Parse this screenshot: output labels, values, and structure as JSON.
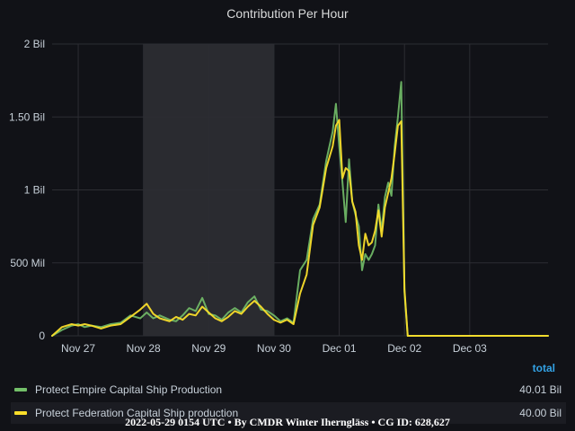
{
  "chart_data": {
    "type": "line",
    "title": "Contribution Per Hour",
    "x_tick_labels": [
      "Nov 27",
      "Nov 28",
      "Nov 29",
      "Nov 30",
      "Dec 01",
      "Dec 02",
      "Dec 03"
    ],
    "x_range": [
      26.6,
      34.2
    ],
    "y_tick_labels": [
      "0",
      "500 Mil",
      "1 Bil",
      "1.50 Bil",
      "2 Bil"
    ],
    "y_ticks": [
      0,
      500000000,
      1000000000,
      1500000000,
      2000000000
    ],
    "ylim": [
      0,
      2000000000
    ],
    "shaded_region": [
      28.0,
      30.0
    ],
    "grid": true,
    "legend_position": "bottom",
    "legend_column_header": "total",
    "series": [
      {
        "name": "Protect Empire Capital Ship Production",
        "color": "#73bf69",
        "total": "40.01 Bil",
        "x": [
          26.6,
          26.75,
          26.9,
          27.0,
          27.1,
          27.2,
          27.35,
          27.5,
          27.65,
          27.8,
          27.95,
          28.05,
          28.15,
          28.25,
          28.4,
          28.5,
          28.6,
          28.7,
          28.8,
          28.9,
          29.0,
          29.1,
          29.2,
          29.3,
          29.4,
          29.5,
          29.6,
          29.7,
          29.8,
          29.9,
          30.0,
          30.1,
          30.2,
          30.3,
          30.4,
          30.5,
          30.6,
          30.7,
          30.8,
          30.9,
          30.95,
          31.0,
          31.05,
          31.1,
          31.15,
          31.2,
          31.25,
          31.3,
          31.35,
          31.4,
          31.45,
          31.5,
          31.55,
          31.6,
          31.65,
          31.7,
          31.75,
          31.8,
          31.85,
          31.9,
          31.95,
          32.0,
          32.05,
          32.1,
          32.2,
          32.5,
          33.0,
          33.5,
          34.0,
          34.2
        ],
        "y": [
          0,
          40000000,
          70000000,
          80000000,
          60000000,
          70000000,
          60000000,
          80000000,
          90000000,
          140000000,
          120000000,
          160000000,
          120000000,
          140000000,
          110000000,
          100000000,
          140000000,
          190000000,
          170000000,
          260000000,
          150000000,
          140000000,
          110000000,
          160000000,
          190000000,
          160000000,
          230000000,
          270000000,
          180000000,
          170000000,
          140000000,
          100000000,
          120000000,
          90000000,
          450000000,
          520000000,
          800000000,
          900000000,
          1200000000,
          1400000000,
          1590000000,
          1300000000,
          1050000000,
          780000000,
          1210000000,
          920000000,
          830000000,
          750000000,
          450000000,
          560000000,
          520000000,
          560000000,
          620000000,
          900000000,
          720000000,
          950000000,
          1050000000,
          960000000,
          1300000000,
          1500000000,
          1740000000,
          300000000,
          0,
          0,
          0,
          0,
          0,
          0,
          0,
          0
        ]
      },
      {
        "name": "Protect Federation Capital Ship production",
        "color": "#fade2a",
        "total": "40.00 Bil",
        "x": [
          26.6,
          26.75,
          26.9,
          27.0,
          27.1,
          27.2,
          27.35,
          27.5,
          27.65,
          27.8,
          27.95,
          28.05,
          28.15,
          28.25,
          28.4,
          28.5,
          28.6,
          28.7,
          28.8,
          28.9,
          29.0,
          29.1,
          29.2,
          29.3,
          29.4,
          29.5,
          29.6,
          29.7,
          29.8,
          29.9,
          30.0,
          30.1,
          30.2,
          30.3,
          30.4,
          30.5,
          30.6,
          30.7,
          30.8,
          30.9,
          30.95,
          31.0,
          31.05,
          31.1,
          31.15,
          31.2,
          31.25,
          31.3,
          31.35,
          31.4,
          31.45,
          31.5,
          31.55,
          31.6,
          31.65,
          31.7,
          31.75,
          31.8,
          31.85,
          31.9,
          31.95,
          32.0,
          32.05,
          32.1,
          32.2,
          32.5,
          33.0,
          33.5,
          34.0,
          34.2
        ],
        "y": [
          0,
          60000000,
          80000000,
          70000000,
          80000000,
          70000000,
          50000000,
          70000000,
          80000000,
          130000000,
          180000000,
          220000000,
          150000000,
          120000000,
          100000000,
          130000000,
          110000000,
          150000000,
          140000000,
          200000000,
          160000000,
          120000000,
          100000000,
          130000000,
          170000000,
          150000000,
          200000000,
          240000000,
          200000000,
          150000000,
          110000000,
          90000000,
          110000000,
          80000000,
          290000000,
          420000000,
          760000000,
          880000000,
          1150000000,
          1300000000,
          1440000000,
          1480000000,
          1080000000,
          1150000000,
          1130000000,
          920000000,
          850000000,
          620000000,
          520000000,
          700000000,
          620000000,
          640000000,
          720000000,
          860000000,
          680000000,
          880000000,
          980000000,
          1080000000,
          1250000000,
          1440000000,
          1470000000,
          320000000,
          0,
          0,
          0,
          0,
          0,
          0,
          0,
          0
        ]
      }
    ]
  },
  "footer": "2022-05-29 0154 UTC • By CMDR Winter Iherngläss • CG ID: 628,627"
}
